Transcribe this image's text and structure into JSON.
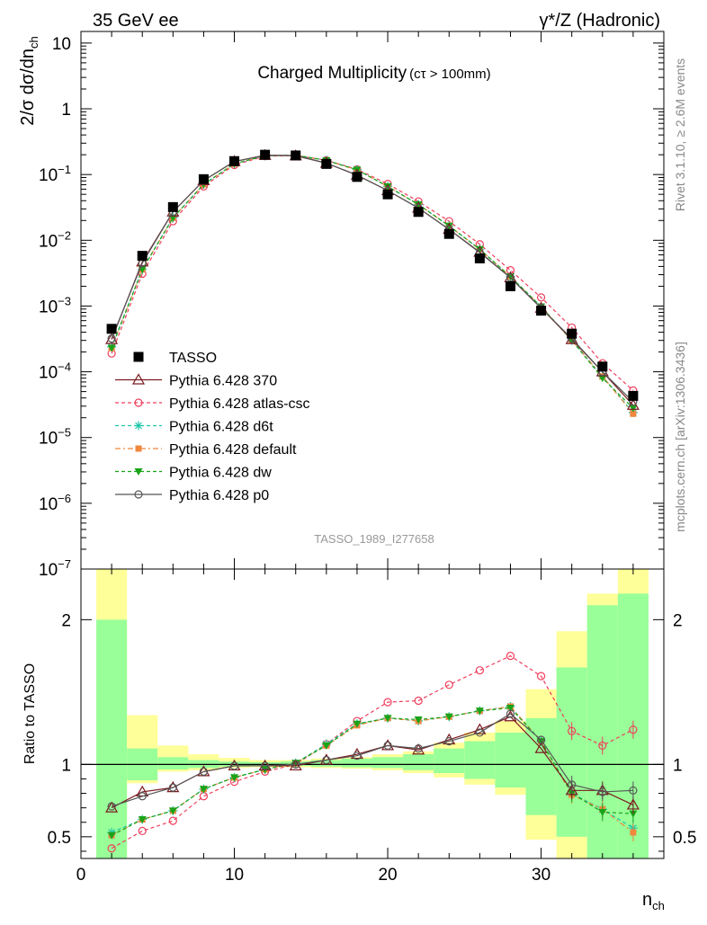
{
  "header": {
    "left": "35 GeV ee",
    "right": "γ*/Z (Hadronic)"
  },
  "side_labels": {
    "rivet": "Rivet 3.1.10, ≥ 2.6M events",
    "mcplots": "mcplots.cern.ch [arXiv:1306.3436]"
  },
  "colors": {
    "data": "#000000",
    "p370": "#7b1a1f",
    "atlas": "#ef3e5c",
    "d6t": "#1fc7a8",
    "default": "#f0873e",
    "dw": "#19a319",
    "p0": "#555555",
    "band_yellow": "#ffff99",
    "band_green": "#99ff99"
  },
  "chart_data": [
    {
      "type": "scatter",
      "panel": "main",
      "title": "Charged Multiplicity",
      "title_suffix": "(cτ > 100mm)",
      "watermark": "TASSO_1989_I277658",
      "ylabel": "2/σ dσ/dn",
      "ylabel_sub": "ch",
      "yscale": "log",
      "xlim": [
        0,
        38
      ],
      "ylim": [
        1e-07,
        15
      ],
      "ytick_labels": [
        {
          "value": 10,
          "base": "10",
          "exp": ""
        },
        {
          "value": 1,
          "base": "1",
          "exp": ""
        },
        {
          "value": 0.1,
          "base": "10",
          "exp": "−1"
        },
        {
          "value": 0.01,
          "base": "10",
          "exp": "−2"
        },
        {
          "value": 0.001,
          "base": "10",
          "exp": "−3"
        },
        {
          "value": 0.0001,
          "base": "10",
          "exp": "−4"
        },
        {
          "value": 1e-05,
          "base": "10",
          "exp": "−5"
        },
        {
          "value": 1e-06,
          "base": "10",
          "exp": "−6"
        },
        {
          "value": 1e-07,
          "base": "10",
          "exp": "−7"
        }
      ],
      "x": [
        2,
        4,
        6,
        8,
        10,
        12,
        14,
        16,
        18,
        20,
        22,
        24,
        26,
        28,
        30,
        32,
        34,
        36
      ],
      "data": {
        "name": "TASSO",
        "values": [
          0.00045,
          0.0058,
          0.032,
          0.085,
          0.16,
          0.2,
          0.195,
          0.145,
          0.092,
          0.05,
          0.027,
          0.0125,
          0.0053,
          0.002,
          0.00085,
          0.00038,
          0.00012,
          4.3e-05
        ]
      },
      "series": [
        {
          "name": "Pythia 6.428 370",
          "key": "p370",
          "marker": "triangle-open",
          "dash": "solid",
          "values": [
            0.00031,
            0.0047,
            0.027,
            0.081,
            0.158,
            0.196,
            0.193,
            0.149,
            0.098,
            0.057,
            0.031,
            0.0147,
            0.0066,
            0.0027,
            0.00093,
            0.00031,
            0.0001,
            3.1e-05
          ]
        },
        {
          "name": "Pythia 6.428 atlas-csc",
          "key": "atlas",
          "marker": "circle-open",
          "dash": "4,3",
          "values": [
            0.00019,
            0.0031,
            0.0195,
            0.066,
            0.14,
            0.19,
            0.195,
            0.165,
            0.12,
            0.072,
            0.039,
            0.0195,
            0.0087,
            0.0035,
            0.00135,
            0.00047,
            0.000135,
            5.2e-05
          ]
        },
        {
          "name": "Pythia 6.428 d6t",
          "key": "d6t",
          "marker": "star",
          "dash": "4,3",
          "values": [
            0.00024,
            0.0036,
            0.022,
            0.071,
            0.146,
            0.193,
            0.197,
            0.165,
            0.118,
            0.066,
            0.035,
            0.0165,
            0.0073,
            0.0028,
            0.00098,
            0.0003,
            8.5e-05,
            2.4e-05
          ]
        },
        {
          "name": "Pythia 6.428 default",
          "key": "default",
          "marker": "square",
          "dash": "6,3,2,3",
          "values": [
            0.00023,
            0.0036,
            0.022,
            0.071,
            0.146,
            0.193,
            0.197,
            0.164,
            0.117,
            0.066,
            0.035,
            0.0166,
            0.0073,
            0.0028,
            0.00098,
            0.0003,
            8.5e-05,
            2.3e-05
          ]
        },
        {
          "name": "Pythia 6.428 dw",
          "key": "dw",
          "marker": "triangle-down",
          "dash": "4,3",
          "values": [
            0.00023,
            0.0036,
            0.022,
            0.071,
            0.146,
            0.193,
            0.197,
            0.164,
            0.118,
            0.066,
            0.035,
            0.0166,
            0.0073,
            0.0028,
            0.00098,
            0.0003,
            8e-05,
            2.8e-05
          ]
        },
        {
          "name": "Pythia 6.428 p0",
          "key": "p0",
          "marker": "circle-open",
          "dash": "solid",
          "values": [
            0.00032,
            0.0045,
            0.027,
            0.081,
            0.158,
            0.196,
            0.195,
            0.149,
            0.098,
            0.057,
            0.031,
            0.0146,
            0.0065,
            0.0027,
            0.00093,
            0.00032,
            0.0001,
            3.5e-05
          ]
        }
      ]
    },
    {
      "type": "scatter",
      "panel": "ratio",
      "ylabel": "Ratio to TASSO",
      "xlabel": "n",
      "xlabel_sub": "ch",
      "xlim": [
        0,
        38
      ],
      "ylim": [
        0.35,
        2.35
      ],
      "xticks": [
        0,
        10,
        20,
        30
      ],
      "yticks": [
        0.5,
        1,
        2
      ],
      "bands": {
        "edges": [
          1,
          3,
          5,
          7,
          9,
          11,
          13,
          15,
          17,
          19,
          21,
          23,
          25,
          27,
          29,
          31,
          33,
          35,
          37
        ],
        "yellow_lo": [
          0.35,
          0.87,
          0.95,
          0.96,
          0.975,
          0.98,
          0.98,
          0.975,
          0.97,
          0.96,
          0.94,
          0.91,
          0.86,
          0.79,
          0.48,
          0.35,
          0.35,
          0.35
        ],
        "yellow_hi": [
          2.35,
          1.34,
          1.13,
          1.07,
          1.045,
          1.03,
          1.03,
          1.04,
          1.05,
          1.07,
          1.09,
          1.15,
          1.22,
          1.3,
          1.52,
          1.92,
          2.18,
          2.35
        ],
        "green_lo": [
          0.35,
          0.89,
          0.965,
          0.975,
          0.985,
          0.99,
          0.99,
          0.985,
          0.98,
          0.975,
          0.96,
          0.94,
          0.9,
          0.84,
          0.65,
          0.5,
          0.35,
          0.35
        ],
        "green_hi": [
          2.0,
          1.11,
          1.05,
          1.03,
          1.02,
          1.015,
          1.02,
          1.03,
          1.04,
          1.05,
          1.07,
          1.11,
          1.16,
          1.22,
          1.32,
          1.67,
          2.1,
          2.18
        ]
      },
      "series": [
        {
          "key": "p370",
          "values": [
            0.7,
            0.81,
            0.84,
            0.95,
            0.99,
            0.99,
            0.99,
            1.03,
            1.07,
            1.13,
            1.1,
            1.17,
            1.24,
            1.33,
            1.11,
            0.82,
            0.82,
            0.72
          ]
        },
        {
          "key": "atlas",
          "values": [
            0.42,
            0.54,
            0.61,
            0.78,
            0.88,
            0.95,
            1.0,
            1.14,
            1.3,
            1.43,
            1.44,
            1.55,
            1.65,
            1.75,
            1.61,
            1.23,
            1.13,
            1.24
          ]
        },
        {
          "key": "d6t",
          "values": [
            0.53,
            0.62,
            0.68,
            0.83,
            0.91,
            0.965,
            1.01,
            1.14,
            1.28,
            1.32,
            1.3,
            1.33,
            1.37,
            1.4,
            1.16,
            0.8,
            0.69,
            0.56
          ]
        },
        {
          "key": "default",
          "values": [
            0.51,
            0.62,
            0.68,
            0.83,
            0.91,
            0.965,
            1.01,
            1.13,
            1.27,
            1.32,
            1.3,
            1.33,
            1.37,
            1.4,
            1.16,
            0.79,
            0.69,
            0.53
          ]
        },
        {
          "key": "dw",
          "values": [
            0.51,
            0.62,
            0.68,
            0.83,
            0.91,
            0.965,
            1.01,
            1.13,
            1.28,
            1.32,
            1.31,
            1.33,
            1.37,
            1.39,
            1.16,
            0.8,
            0.67,
            0.66
          ]
        },
        {
          "key": "p0",
          "values": [
            0.71,
            0.78,
            0.84,
            0.95,
            0.99,
            0.99,
            1.0,
            1.03,
            1.06,
            1.13,
            1.11,
            1.16,
            1.22,
            1.35,
            1.17,
            0.86,
            0.81,
            0.82
          ]
        }
      ]
    }
  ]
}
